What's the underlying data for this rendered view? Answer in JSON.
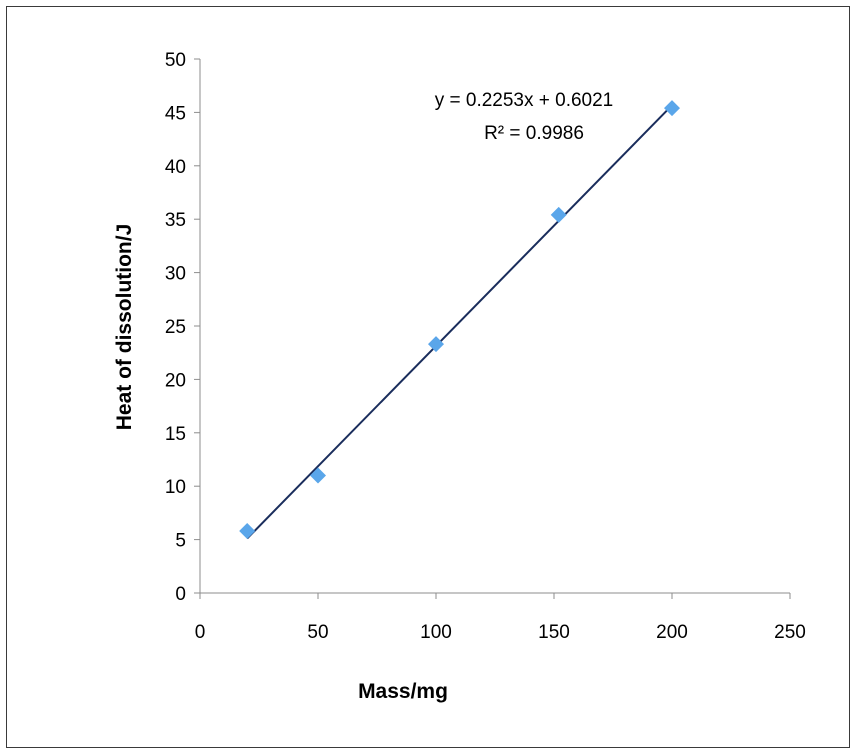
{
  "chart_data": {
    "type": "scatter",
    "title": "",
    "xlabel": "Mass/mg",
    "ylabel": "Heat of dissolution/J",
    "xlim": [
      0,
      250
    ],
    "ylim": [
      0,
      50
    ],
    "xticks": [
      "0",
      "50",
      "100",
      "150",
      "200",
      "250"
    ],
    "yticks": [
      "0",
      "5",
      "10",
      "15",
      "20",
      "25",
      "30",
      "35",
      "40",
      "45",
      "50"
    ],
    "grid": false,
    "legend": "none",
    "series": [
      {
        "x": [
          20,
          50,
          100,
          152,
          200
        ],
        "y": [
          5.8,
          11.0,
          23.3,
          35.4,
          45.4
        ],
        "marker": "diamond",
        "color": "#5aa6ea"
      }
    ],
    "trendline": {
      "type": "linear",
      "slope": 0.2253,
      "intercept": 0.6021,
      "x_range": [
        20,
        200
      ],
      "color": "#1a2d5c"
    },
    "annotations": {
      "equation": "y = 0.2253x + 0.6021",
      "r_squared": "R² = 0.9986"
    },
    "colors": {
      "axis": "#8c8c8c",
      "text": "#000000",
      "frame": "#3a3a3a"
    }
  }
}
